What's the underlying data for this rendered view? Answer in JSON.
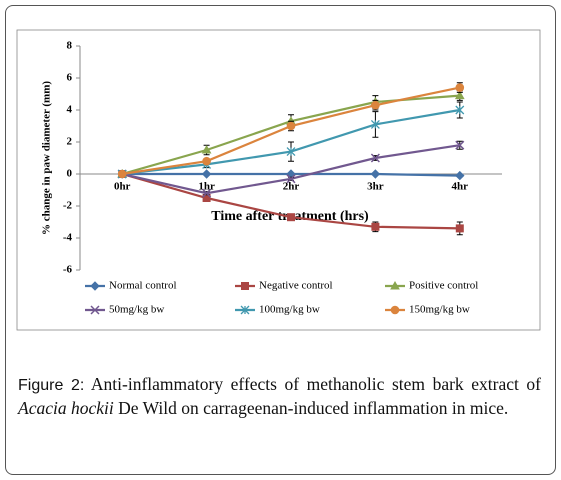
{
  "chart_data": {
    "type": "line",
    "y_label": "% change in paw diameter (mm)",
    "x_label": "Time after treatment (hrs)",
    "categories": [
      "0hr",
      "1hr",
      "2hr",
      "3hr",
      "4hr"
    ],
    "ylim": [
      -6,
      8
    ],
    "yticks": [
      -6,
      -4,
      -2,
      0,
      2,
      4,
      6,
      8
    ],
    "series": [
      {
        "name": "Normal control",
        "color": "#4572a7",
        "marker": "diamond",
        "values": [
          0,
          0,
          0,
          0,
          -0.1
        ],
        "errors": [
          0,
          0,
          0,
          0,
          0
        ]
      },
      {
        "name": "Negative control",
        "color": "#aa4643",
        "marker": "square",
        "values": [
          0,
          -1.5,
          -2.7,
          -3.3,
          -3.4
        ],
        "errors": [
          0,
          0.1,
          0.2,
          0.3,
          0.4
        ]
      },
      {
        "name": "Positive control",
        "color": "#89a54e",
        "marker": "triangle",
        "values": [
          0,
          1.5,
          3.3,
          4.5,
          4.9
        ],
        "errors": [
          0,
          0.3,
          0.4,
          0.4,
          0.3
        ]
      },
      {
        "name": "50mg/kg bw",
        "color": "#71588f",
        "marker": "x",
        "values": [
          0,
          -1.2,
          -0.3,
          1.0,
          1.8
        ],
        "errors": [
          0,
          0.1,
          0.1,
          0.15,
          0.25
        ]
      },
      {
        "name": "100mg/kg bw",
        "color": "#4198af",
        "marker": "star",
        "values": [
          0,
          0.6,
          1.4,
          3.1,
          4.0
        ],
        "errors": [
          0,
          0.2,
          0.6,
          0.8,
          0.5
        ]
      },
      {
        "name": "150mg/kg bw",
        "color": "#db843d",
        "marker": "circle",
        "values": [
          0,
          0.8,
          3.0,
          4.3,
          5.4
        ],
        "errors": [
          0,
          0.1,
          0.3,
          0.3,
          0.3
        ]
      }
    ]
  },
  "caption": {
    "label": "Figure 2:",
    "text": "Anti-inflammatory effects of methanolic stem bark extract of",
    "species": "Acacia hockii",
    "text_end": "De Wild on carrageenan-induced inflammation in mice."
  }
}
